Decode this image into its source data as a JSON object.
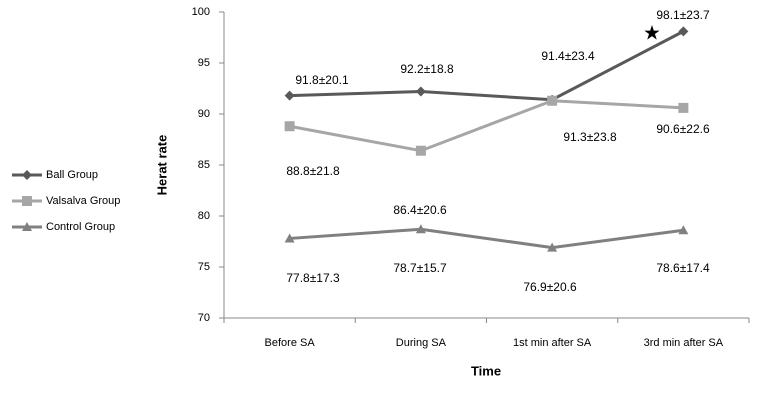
{
  "chart_data": {
    "type": "line",
    "x_label": "Time",
    "y_label": "Herat  rate",
    "categories": [
      "Before SA",
      "During SA",
      "1st min after SA",
      "3rd min after SA"
    ],
    "series": [
      {
        "name": "Ball Group",
        "color": "#595959",
        "marker": "diamond",
        "values": [
          91.8,
          92.2,
          91.4,
          98.1
        ],
        "value_labels": [
          "91.8±20.1",
          "92.2±18.8",
          "91.4±23.4",
          "98.1±23.7"
        ]
      },
      {
        "name": "Valsalva Group",
        "color": "#a6a6a6",
        "marker": "square",
        "values": [
          88.8,
          86.4,
          91.3,
          90.6
        ],
        "value_labels": [
          "88.8±21.8",
          "86.4±20.6",
          "91.3±23.8",
          "90.6±22.6"
        ]
      },
      {
        "name": "Control Group",
        "color": "#808080",
        "marker": "triangle",
        "values": [
          77.8,
          78.7,
          76.9,
          78.6
        ],
        "value_labels": [
          "77.8±17.3",
          "78.7±15.7",
          "76.9±20.6",
          "78.6±17.4"
        ]
      }
    ],
    "annotation": "★",
    "ylim": [
      70,
      100
    ],
    "yticks": [
      70,
      75,
      80,
      85,
      90,
      95,
      100
    ],
    "grid": false,
    "legend": "left"
  }
}
